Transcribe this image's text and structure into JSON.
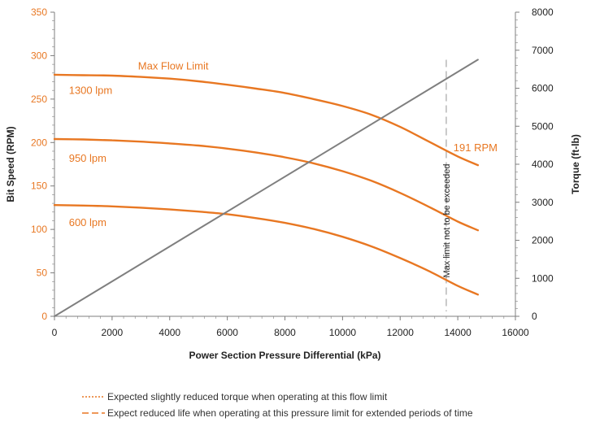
{
  "chart_data": {
    "type": "line",
    "xlabel": "Power Section Pressure Differential (kPa)",
    "ylabel": "Bit Speed (RPM)",
    "y2label": "Torque (ft-lb)",
    "xlim": [
      0,
      16000
    ],
    "ylim": [
      0,
      350
    ],
    "y2lim": [
      0,
      8000
    ],
    "x_ticks": [
      "0",
      "2000",
      "4000",
      "6000",
      "8000",
      "10000",
      "12000",
      "14000",
      "16000"
    ],
    "y_ticks": [
      "0",
      "50",
      "100",
      "150",
      "200",
      "250",
      "300",
      "350"
    ],
    "y2_ticks": [
      "0",
      "1000",
      "2000",
      "3000",
      "4000",
      "5000",
      "6000",
      "7000",
      "8000"
    ],
    "grid": false,
    "series": [
      {
        "name": "1300 lpm",
        "axis": "left",
        "color": "#E87722",
        "x": [
          0,
          1000,
          2000,
          3000,
          4000,
          5000,
          6000,
          7000,
          8000,
          9000,
          10000,
          11000,
          12000,
          13000,
          14000,
          14700
        ],
        "values": [
          278,
          277.5,
          277,
          275.5,
          273.5,
          270.5,
          266.5,
          262,
          257,
          250,
          242,
          232,
          218,
          201,
          184,
          174
        ]
      },
      {
        "name": "950 lpm",
        "axis": "left",
        "color": "#E87722",
        "x": [
          0,
          1000,
          2000,
          3000,
          4000,
          5000,
          6000,
          7000,
          8000,
          9000,
          10000,
          11000,
          12000,
          13000,
          14000,
          14700
        ],
        "values": [
          204,
          203.5,
          202.5,
          201,
          199,
          196.5,
          193,
          188.5,
          183,
          176,
          167,
          156,
          142,
          126,
          109,
          99
        ]
      },
      {
        "name": "600 lpm",
        "axis": "left",
        "color": "#E87722",
        "x": [
          0,
          1000,
          2000,
          3000,
          4000,
          5000,
          6000,
          7000,
          8000,
          9000,
          10000,
          11000,
          12000,
          13000,
          14000,
          14700
        ],
        "values": [
          128,
          127.5,
          126.5,
          125,
          123,
          120.5,
          117.5,
          113,
          107.5,
          100.5,
          91.5,
          80.5,
          67,
          52,
          35,
          25
        ]
      },
      {
        "name": "Torque",
        "axis": "right",
        "color": "#7F7F7F",
        "x": [
          0,
          14700
        ],
        "values": [
          0,
          6750
        ]
      }
    ],
    "annotations": {
      "max_flow_limit": "Max Flow Limit",
      "rpm_label": "191 RPM",
      "pressure_limit": "Max limit not to be exceeded",
      "pressure_limit_x": 13600,
      "pressure_limit_y_top": 6750
    },
    "legend": [
      {
        "style": "dotted",
        "color": "#E87722",
        "text": "Expected slightly reduced torque when operating at this flow limit"
      },
      {
        "style": "dashed",
        "color": "#E87722",
        "text": "Expect reduced life when operating at this pressure limit for extended periods of time"
      }
    ]
  },
  "colors": {
    "curve": "#E87722",
    "torque_line": "#7F7F7F",
    "limit_line": "#A6A6A6",
    "axis": "#7F7F7F"
  }
}
